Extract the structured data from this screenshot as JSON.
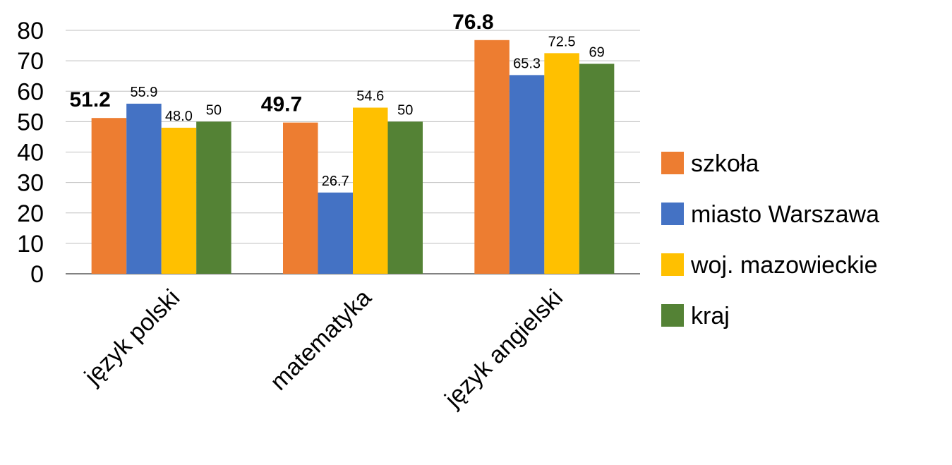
{
  "chart_data": {
    "type": "bar",
    "categories": [
      "język polski",
      "matematyka",
      "język angielski"
    ],
    "series": [
      {
        "name": "szkoła",
        "color": "#ED7D31",
        "values": [
          51.2,
          49.7,
          76.8
        ],
        "labels": [
          "51.2",
          "49.7",
          "76.8"
        ],
        "bold_labels": true
      },
      {
        "name": "miasto Warszawa",
        "color": "#4472C4",
        "values": [
          55.9,
          26.7,
          65.3
        ],
        "labels": [
          "55.9",
          "26.7",
          "65.3"
        ],
        "bold_labels": false
      },
      {
        "name": "woj. mazowieckie",
        "color": "#FFC000",
        "values": [
          48.0,
          54.6,
          72.5
        ],
        "labels": [
          "48.0",
          "54.6",
          "72.5"
        ],
        "bold_labels": false
      },
      {
        "name": "kraj",
        "color": "#548235",
        "values": [
          50,
          50,
          69
        ],
        "labels": [
          "50",
          "50",
          "69"
        ],
        "bold_labels": false
      }
    ],
    "ylim": [
      0,
      80
    ],
    "yticks": [
      "0",
      "10",
      "20",
      "30",
      "40",
      "50",
      "60",
      "70",
      "80"
    ],
    "grid": true,
    "legend": "right",
    "xlabel_rotation": "-45deg"
  }
}
